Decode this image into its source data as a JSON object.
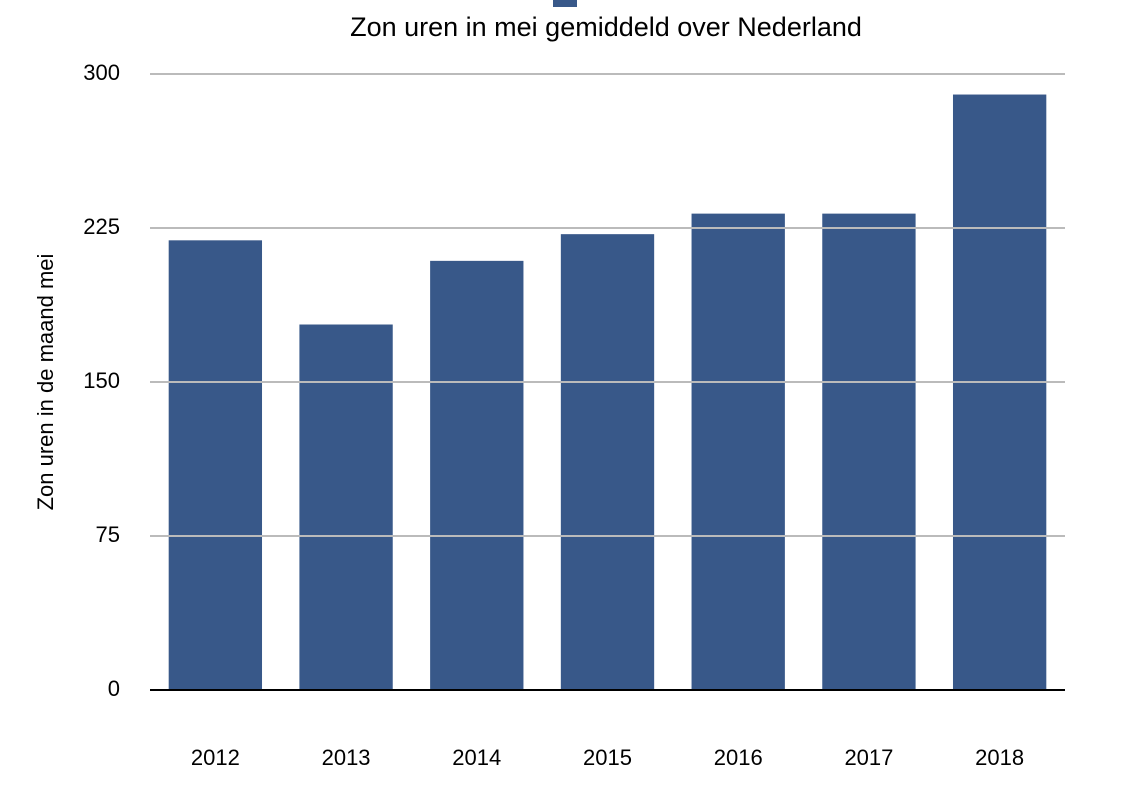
{
  "chart_data": {
    "type": "bar",
    "title": "Zon uren in mei gemiddeld over Nederland",
    "y_label": "Zon uren in de maand mei",
    "categories": [
      "2012",
      "2013",
      "2014",
      "2015",
      "2016",
      "2017",
      "2018"
    ],
    "values": [
      219,
      178,
      209,
      222,
      232,
      232,
      290
    ],
    "color": "#385889",
    "ylim": [
      0,
      300
    ],
    "yticks": [
      0,
      75,
      150,
      225,
      300
    ],
    "grid": true
  }
}
